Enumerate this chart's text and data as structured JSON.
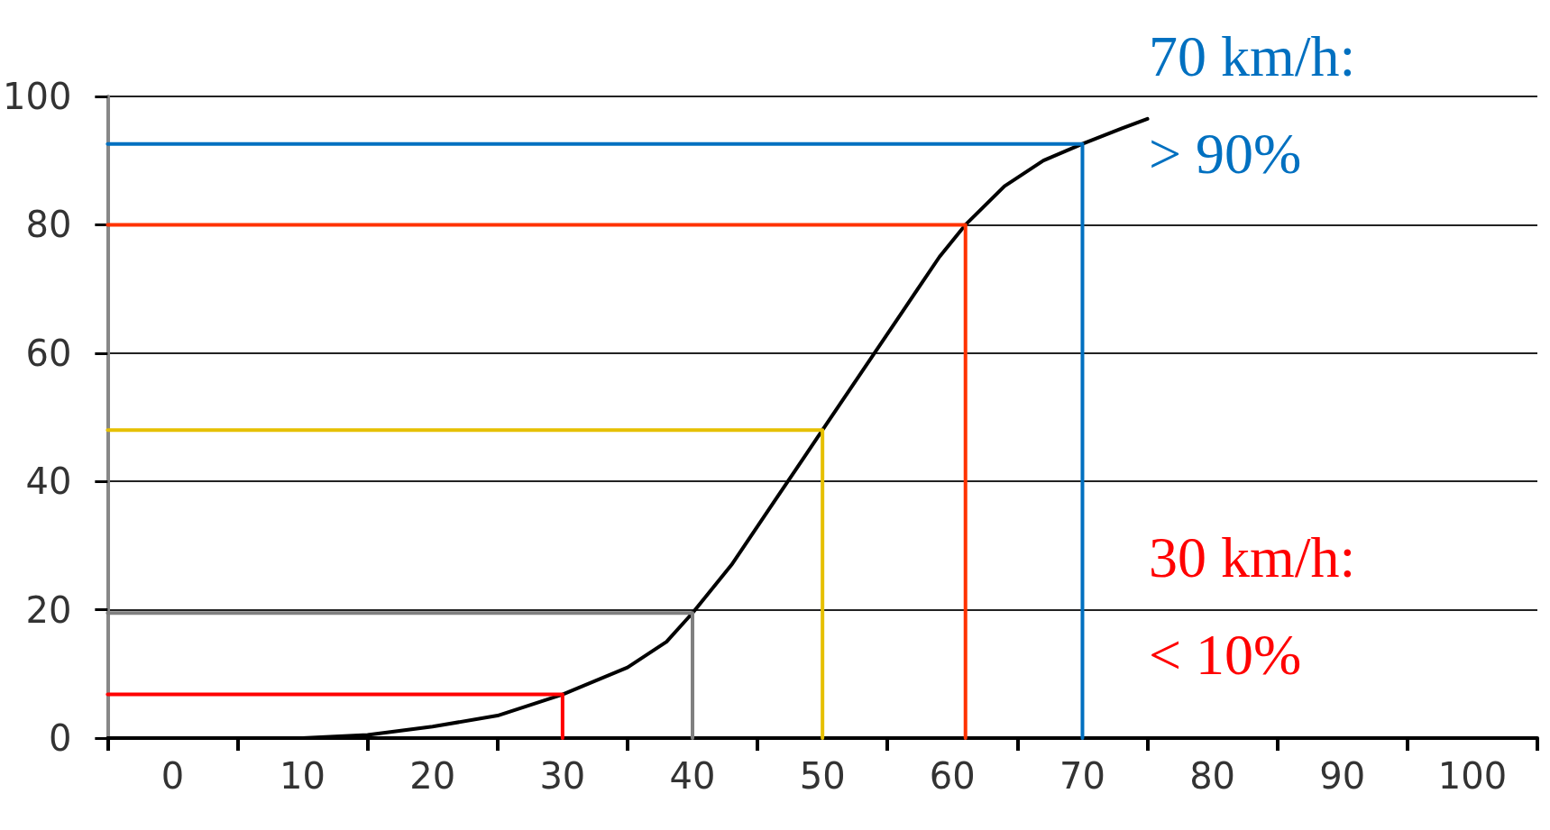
{
  "chart_data": {
    "type": "line",
    "xlim": [
      -5,
      105
    ],
    "ylim": [
      0,
      100
    ],
    "xticks": [
      0,
      10,
      20,
      30,
      40,
      50,
      60,
      70,
      80,
      90,
      100,
      {
        "value": -5,
        "label": null
      },
      {
        "value": 5,
        "label": null
      },
      {
        "value": 15,
        "label": null
      },
      {
        "value": 25,
        "label": null
      },
      {
        "value": 35,
        "label": null
      },
      {
        "value": 45,
        "label": null
      },
      {
        "value": 55,
        "label": null
      },
      {
        "value": 65,
        "label": null
      },
      {
        "value": 75,
        "label": null
      },
      {
        "value": 85,
        "label": null
      },
      {
        "value": 95,
        "label": null
      },
      {
        "value": 105,
        "label": null
      }
    ],
    "yticks": [
      0,
      20,
      40,
      60,
      {
        "value": 80,
        "label": "80"
      },
      100
    ],
    "grid": "y",
    "marker": "none",
    "line_style": "solid",
    "series": [
      {
        "color": "#000000",
        "x": [
          10,
          15,
          20,
          25,
          30,
          35,
          38,
          40,
          43,
          46,
          50,
          53,
          56,
          59,
          61,
          64,
          67,
          70,
          73,
          75
        ],
        "values": [
          0,
          0.5,
          1.8,
          3.5,
          6.8,
          11,
          15,
          19.5,
          27,
          36,
          48,
          57,
          66,
          75,
          80,
          86,
          90,
          92.6,
          95,
          96.5
        ]
      },
      {
        "color": "#ff0000",
        "x": [
          -5,
          30,
          30
        ],
        "values": [
          6.8,
          6.8,
          0
        ]
      },
      {
        "color": "#808080",
        "x": [
          -5,
          40,
          40
        ],
        "values": [
          19.5,
          19.5,
          0
        ]
      },
      {
        "color": "#e6c000",
        "x": [
          -5,
          50,
          50
        ],
        "values": [
          48,
          48,
          0
        ]
      },
      {
        "color": "#ff3300",
        "x": [
          -5,
          61,
          61
        ],
        "values": [
          80,
          80,
          0
        ]
      },
      {
        "color": "#0070c0",
        "x": [
          -5,
          70,
          70
        ],
        "values": [
          92.6,
          92.6,
          0
        ]
      }
    ],
    "annotations": [
      "70 km/h: > 90%",
      "30 km/h: < 10%"
    ]
  }
}
